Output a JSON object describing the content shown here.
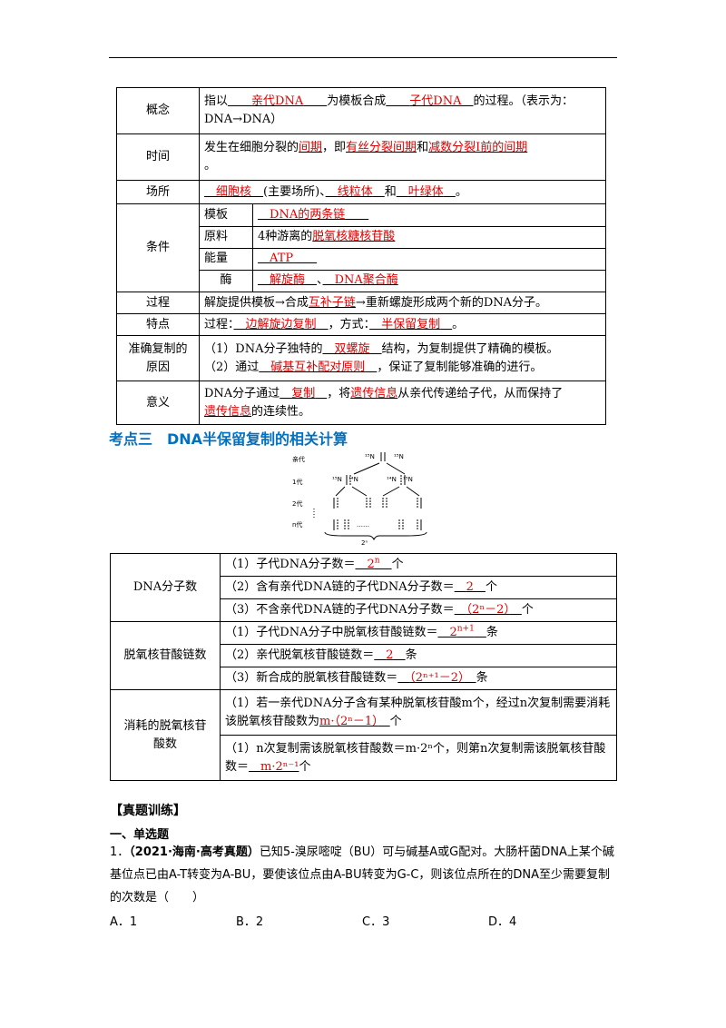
{
  "table1": {
    "concept": {
      "label": "概念",
      "t1": "指以",
      "a1": "亲代DNA",
      "t2": "为模板合成",
      "a2": "子代DNA",
      "t3": "的过程。（表示为：DNA→DNA）"
    },
    "time": {
      "label": "时间",
      "t1": "发生在细胞分裂的",
      "a1": "间期",
      "t2": "，即",
      "a2": "有丝分裂间期",
      "t3": "和",
      "a3": "减数分裂Ⅰ前的间期",
      "t4": "。"
    },
    "place": {
      "label": "场所",
      "a1": "细胞核",
      "t1": "(主要场所)、",
      "a2": "线粒体",
      "t2": "和",
      "a3": "叶绿体",
      "t3": "。"
    },
    "cond": {
      "label": "条件",
      "template_label": "模板",
      "template_ans": "DNA的两条链",
      "raw_label": "原料",
      "raw_pre": "4种游离的",
      "raw_ans": "脱氧核糖核苷酸",
      "energy_label": "能量",
      "energy_ans": "ATP",
      "enzyme_label": "酶",
      "enzyme_a1": "解旋酶",
      "enzyme_sep": "、",
      "enzyme_a2": "DNA聚合酶"
    },
    "process": {
      "label": "过程",
      "t1": "解旋提供模板→合成",
      "a1": "互补子链",
      "t2": "→重新螺旋形成两个新的DNA分子。"
    },
    "feature": {
      "label": "特点",
      "t1": "过程：",
      "a1": "边解旋边复制",
      "t2": "，方式：",
      "a2": "半保留复制",
      "t3": "。"
    },
    "reason": {
      "label1": "准确复制的",
      "label2": "原因",
      "l1_pre": "（1）DNA分子独特的",
      "l1_ans": "双螺旋",
      "l1_post": "结构，为复制提供了精确的模板。",
      "l2_pre": "（2）通过",
      "l2_ans": "碱基互补配对原则",
      "l2_post": "，保证了复制能够准确的进行。"
    },
    "meaning": {
      "label": "意义",
      "t1": "DNA分子通过",
      "a1": "复制",
      "t2": "，将",
      "a2": "遗传信息",
      "t3": "从亲代传递给子代，从而保持了",
      "a3": "遗传信息",
      "t4": "的连续性。"
    }
  },
  "heading": "考点三　DNA半保留复制的相关计算",
  "diagram": {
    "parent": "亲代",
    "g1": "1代",
    "g2": "2代",
    "gn": "n代",
    "n15": "¹⁵N",
    "n14": "¹⁴N",
    "count": "2ⁿ"
  },
  "table2": {
    "g1": {
      "label": "DNA分子数",
      "r1_pre": "（1）子代DNA分子数＝",
      "r1_ans": "2",
      "r1_sup": "n",
      "r1_post": "个",
      "r2_pre": "（2）含有亲代DNA链的子代DNA分子数＝",
      "r2_ans": "2",
      "r2_post": "个",
      "r3_pre": "（3）不含亲代DNA链的子代DNA分子数＝",
      "r3_ans": "（2ⁿ－2）",
      "r3_post": "个"
    },
    "g2": {
      "label": "脱氧核苷酸链数",
      "r1_pre": "（1）子代DNA分子中脱氧核苷酸链数＝",
      "r1_ans": "2",
      "r1_sup": "n+1",
      "r1_post": "条",
      "r2_pre": "（2）亲代脱氧核苷酸链数＝",
      "r2_ans": "2",
      "r2_post": "条",
      "r3_pre": "（3）新合成的脱氧核苷酸链数＝",
      "r3_ans": "（2ⁿ⁺¹－2）",
      "r3_post": "条"
    },
    "g3": {
      "label1": "消耗的脱氧核苷",
      "label2": "酸数",
      "r1_pre": "（1）若一亲代DNA分子含有某种脱氧核苷酸m个，经过n次复制需要消耗该脱氧核苷酸数为",
      "r1_ans": "m·（2ⁿ－1）",
      "r1_post": "个",
      "r2_pre": "（1）n次复制需该脱氧核苷酸数＝m·2ⁿ个，则第n次复制需该脱氧核苷酸数＝",
      "r2_ans": "m·2ⁿ⁻¹",
      "r2_post": "个"
    }
  },
  "practice": {
    "title": "【真题训练】",
    "section": "一、单选题",
    "q1_num": "1．",
    "q1_src": "（2021·海南·高考真题）",
    "q1_text": "已知5-溴尿嘧啶（BU）可与碱基A或G配对。大肠杆菌DNA上某个碱基位点已由A-T转变为A-BU，要使该位点由A-BU转变为G-C，则该位点所在的DNA至少需要复制的次数是（　　）",
    "options": [
      "A．1",
      "B．2",
      "C．3",
      "D．4"
    ]
  }
}
